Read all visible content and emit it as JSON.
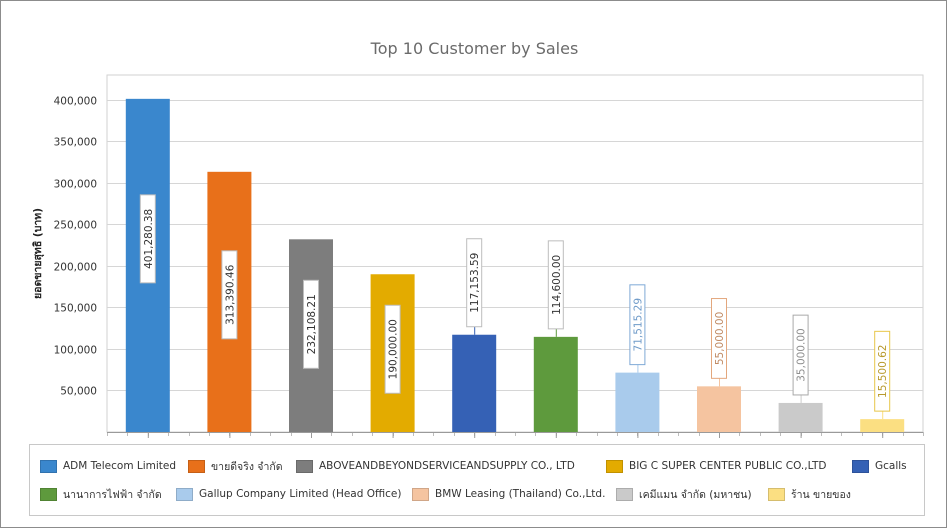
{
  "chart_data": {
    "type": "bar",
    "title": "Top 10 Customer by Sales",
    "xlabel": "",
    "ylabel": "ยอดขายสุทธิ (บาท)",
    "ylim": [
      0,
      430000
    ],
    "yticks": [
      50000,
      100000,
      150000,
      200000,
      250000,
      300000,
      350000,
      400000
    ],
    "ytick_labels": [
      "50,000",
      "100,000",
      "150,000",
      "200,000",
      "250,000",
      "300,000",
      "350,000",
      "400,000"
    ],
    "grid": true,
    "legend": "bottom",
    "series": [
      {
        "name": "ADM Telecom Limited",
        "value": 401280.38,
        "label": "401,280.38",
        "color": "#3a87cd"
      },
      {
        "name": "ขายดีจริง จำกัด",
        "value": 313390.46,
        "label": "313,390.46",
        "color": "#e8701a"
      },
      {
        "name": "ABOVEANDBEYONDSERVICEANDSUPPLY CO., LTD",
        "value": 232108.21,
        "label": "232,108.21",
        "color": "#7d7d7d"
      },
      {
        "name": "BIG C SUPER CENTER PUBLIC CO.,LTD",
        "value": 190000.0,
        "label": "190,000.00",
        "color": "#e3ab00"
      },
      {
        "name": "Gcalls",
        "value": 117153.59,
        "label": "117,153.59",
        "color": "#3561b5"
      },
      {
        "name": "นานาการไฟฟ้า จำกัด",
        "value": 114600.0,
        "label": "114,600.00",
        "color": "#5e9a3d"
      },
      {
        "name": "Gallup Company Limited (Head Office)",
        "value": 71515.29,
        "label": "71,515.29",
        "color": "#a9cbec"
      },
      {
        "name": "BMW Leasing (Thailand) Co.,Ltd.",
        "value": 55000.0,
        "label": "55,000.00",
        "color": "#f5c4a0"
      },
      {
        "name": "เคมีแมน จำกัด (มหาชน)",
        "value": 35000.0,
        "label": "35,000.00",
        "color": "#cacaca"
      },
      {
        "name": "ร้าน ขายของ",
        "value": 15500.62,
        "label": "15,500.62",
        "color": "#fbdf82"
      }
    ]
  }
}
